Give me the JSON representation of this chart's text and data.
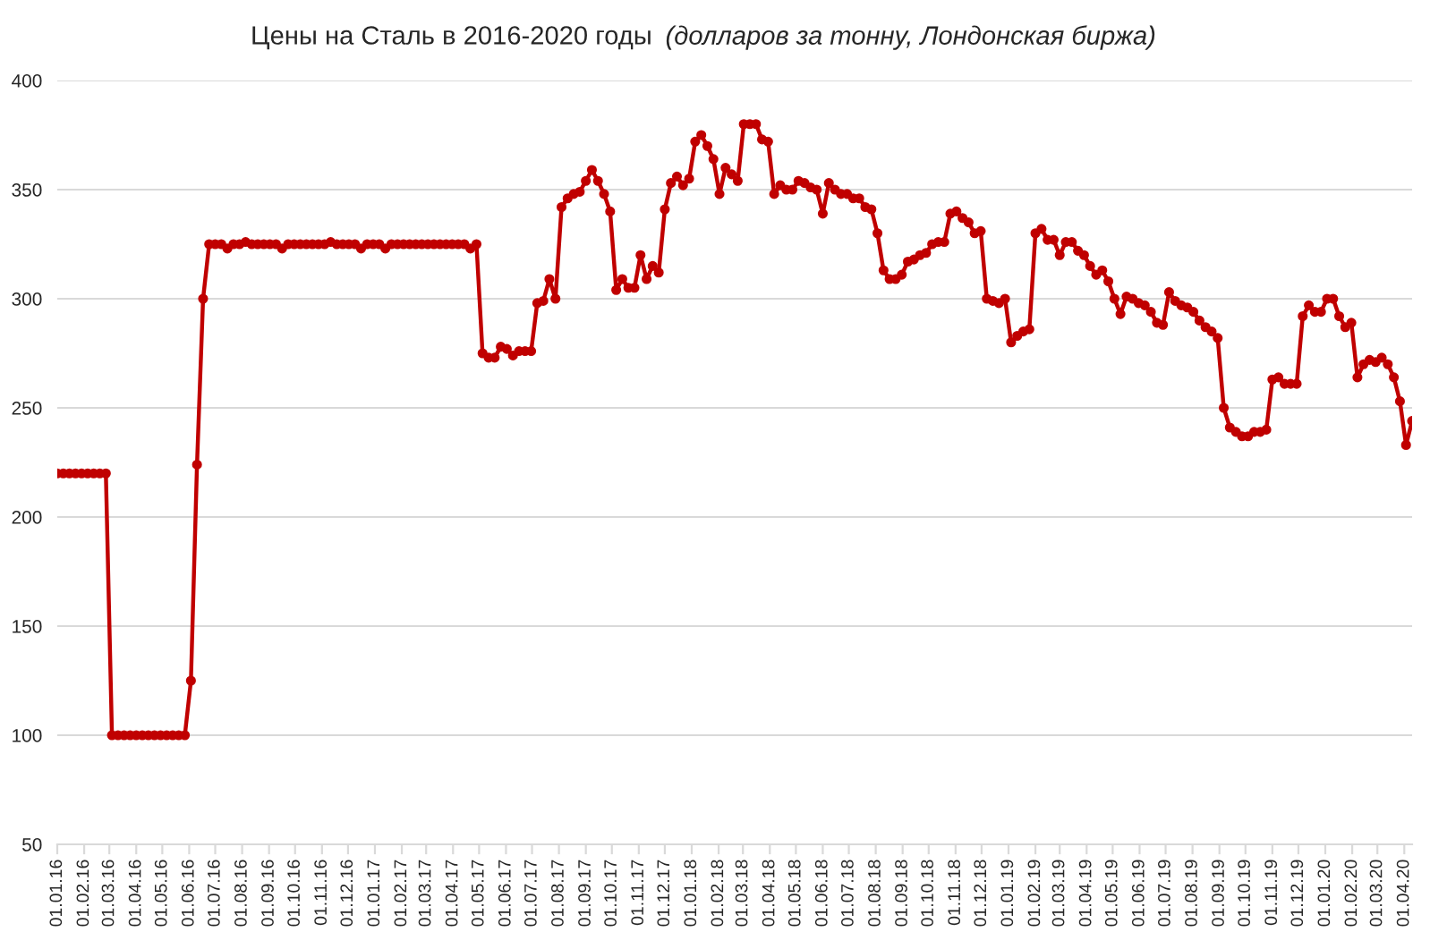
{
  "chart_data": {
    "type": "line",
    "title": "Цены на Сталь в 2016-2020 годы",
    "subtitle": "(долларов за тонну, Лондонская биржа)",
    "color": "#c00000",
    "marker": "circle",
    "line_style": "solid",
    "grid": "y",
    "xlim": [
      "2016-01-01",
      "2020-04-10"
    ],
    "ylim": [
      50,
      400
    ],
    "yticks": [
      50,
      100,
      150,
      200,
      250,
      300,
      350,
      400
    ],
    "xticks": [
      {
        "value": "2016-01-01",
        "label": "01.01.16"
      },
      {
        "value": "2016-02-01",
        "label": "01.02.16"
      },
      {
        "value": "2016-03-01",
        "label": "01.03.16"
      },
      {
        "value": "2016-04-01",
        "label": "01.04.16"
      },
      {
        "value": "2016-05-01",
        "label": "01.05.16"
      },
      {
        "value": "2016-06-01",
        "label": "01.06.16"
      },
      {
        "value": "2016-07-01",
        "label": "01.07.16"
      },
      {
        "value": "2016-08-01",
        "label": "01.08.16"
      },
      {
        "value": "2016-09-01",
        "label": "01.09.16"
      },
      {
        "value": "2016-10-01",
        "label": "01.10.16"
      },
      {
        "value": "2016-11-01",
        "label": "01.11.16"
      },
      {
        "value": "2016-12-01",
        "label": "01.12.16"
      },
      {
        "value": "2017-01-01",
        "label": "01.01.17"
      },
      {
        "value": "2017-02-01",
        "label": "01.02.17"
      },
      {
        "value": "2017-03-01",
        "label": "01.03.17"
      },
      {
        "value": "2017-04-01",
        "label": "01.04.17"
      },
      {
        "value": "2017-05-01",
        "label": "01.05.17"
      },
      {
        "value": "2017-06-01",
        "label": "01.06.17"
      },
      {
        "value": "2017-07-01",
        "label": "01.07.17"
      },
      {
        "value": "2017-08-01",
        "label": "01.08.17"
      },
      {
        "value": "2017-09-01",
        "label": "01.09.17"
      },
      {
        "value": "2017-10-01",
        "label": "01.10.17"
      },
      {
        "value": "2017-11-01",
        "label": "01.11.17"
      },
      {
        "value": "2017-12-01",
        "label": "01.12.17"
      },
      {
        "value": "2018-01-01",
        "label": "01.01.18"
      },
      {
        "value": "2018-02-01",
        "label": "01.02.18"
      },
      {
        "value": "2018-03-01",
        "label": "01.03.18"
      },
      {
        "value": "2018-04-01",
        "label": "01.04.18"
      },
      {
        "value": "2018-05-01",
        "label": "01.05.18"
      },
      {
        "value": "2018-06-01",
        "label": "01.06.18"
      },
      {
        "value": "2018-07-01",
        "label": "01.07.18"
      },
      {
        "value": "2018-08-01",
        "label": "01.08.18"
      },
      {
        "value": "2018-09-01",
        "label": "01.09.18"
      },
      {
        "value": "2018-10-01",
        "label": "01.10.18"
      },
      {
        "value": "2018-11-01",
        "label": "01.11.18"
      },
      {
        "value": "2018-12-01",
        "label": "01.12.18"
      },
      {
        "value": "2019-01-01",
        "label": "01.01.19"
      },
      {
        "value": "2019-02-01",
        "label": "01.02.19"
      },
      {
        "value": "2019-03-01",
        "label": "01.03.19"
      },
      {
        "value": "2019-04-01",
        "label": "01.04.19"
      },
      {
        "value": "2019-05-01",
        "label": "01.05.19"
      },
      {
        "value": "2019-06-01",
        "label": "01.06.19"
      },
      {
        "value": "2019-07-01",
        "label": "01.07.19"
      },
      {
        "value": "2019-08-01",
        "label": "01.08.19"
      },
      {
        "value": "2019-09-01",
        "label": "01.09.19"
      },
      {
        "value": "2019-10-01",
        "label": "01.10.19"
      },
      {
        "value": "2019-11-01",
        "label": "01.11.19"
      },
      {
        "value": "2019-12-01",
        "label": "01.12.19"
      },
      {
        "value": "2020-01-01",
        "label": "01.01.20"
      },
      {
        "value": "2020-02-01",
        "label": "01.02.20"
      },
      {
        "value": "2020-03-01",
        "label": "01.03.20"
      },
      {
        "value": "2020-04-01",
        "label": "01.04.20"
      }
    ],
    "x": [
      "2016-01-01",
      "2016-01-08",
      "2016-01-15",
      "2016-01-22",
      "2016-01-29",
      "2016-02-05",
      "2016-02-12",
      "2016-02-19",
      "2016-02-26",
      "2016-03-04",
      "2016-03-11",
      "2016-03-18",
      "2016-03-25",
      "2016-04-01",
      "2016-04-08",
      "2016-04-15",
      "2016-04-22",
      "2016-04-29",
      "2016-05-06",
      "2016-05-13",
      "2016-05-20",
      "2016-05-27",
      "2016-06-03",
      "2016-06-10",
      "2016-06-17",
      "2016-06-24",
      "2016-07-01",
      "2016-07-08",
      "2016-07-15",
      "2016-07-22",
      "2016-07-29",
      "2016-08-05",
      "2016-08-12",
      "2016-08-19",
      "2016-08-26",
      "2016-09-02",
      "2016-09-09",
      "2016-09-16",
      "2016-09-23",
      "2016-09-30",
      "2016-10-07",
      "2016-10-14",
      "2016-10-21",
      "2016-10-28",
      "2016-11-04",
      "2016-11-11",
      "2016-11-18",
      "2016-11-25",
      "2016-12-02",
      "2016-12-09",
      "2016-12-16",
      "2016-12-23",
      "2016-12-30",
      "2017-01-06",
      "2017-01-13",
      "2017-01-20",
      "2017-01-27",
      "2017-02-03",
      "2017-02-10",
      "2017-02-17",
      "2017-02-24",
      "2017-03-03",
      "2017-03-10",
      "2017-03-17",
      "2017-03-24",
      "2017-03-31",
      "2017-04-07",
      "2017-04-14",
      "2017-04-21",
      "2017-04-28",
      "2017-05-05",
      "2017-05-12",
      "2017-05-19",
      "2017-05-26",
      "2017-06-02",
      "2017-06-09",
      "2017-06-16",
      "2017-06-23",
      "2017-06-30",
      "2017-07-07",
      "2017-07-14",
      "2017-07-21",
      "2017-07-28",
      "2017-08-04",
      "2017-08-11",
      "2017-08-18",
      "2017-08-25",
      "2017-09-01",
      "2017-09-08",
      "2017-09-15",
      "2017-09-22",
      "2017-09-29",
      "2017-10-06",
      "2017-10-13",
      "2017-10-20",
      "2017-10-27",
      "2017-11-03",
      "2017-11-10",
      "2017-11-17",
      "2017-11-24",
      "2017-12-01",
      "2017-12-08",
      "2017-12-15",
      "2017-12-22",
      "2017-12-29",
      "2018-01-05",
      "2018-01-12",
      "2018-01-19",
      "2018-01-26",
      "2018-02-02",
      "2018-02-09",
      "2018-02-16",
      "2018-02-23",
      "2018-03-02",
      "2018-03-09",
      "2018-03-16",
      "2018-03-23",
      "2018-03-30",
      "2018-04-06",
      "2018-04-13",
      "2018-04-20",
      "2018-04-27",
      "2018-05-04",
      "2018-05-11",
      "2018-05-18",
      "2018-05-25",
      "2018-06-01",
      "2018-06-08",
      "2018-06-15",
      "2018-06-22",
      "2018-06-29",
      "2018-07-06",
      "2018-07-13",
      "2018-07-20",
      "2018-07-27",
      "2018-08-03",
      "2018-08-10",
      "2018-08-17",
      "2018-08-24",
      "2018-08-31",
      "2018-09-07",
      "2018-09-14",
      "2018-09-21",
      "2018-09-28",
      "2018-10-05",
      "2018-10-12",
      "2018-10-19",
      "2018-10-26",
      "2018-11-02",
      "2018-11-09",
      "2018-11-16",
      "2018-11-23",
      "2018-11-30",
      "2018-12-07",
      "2018-12-14",
      "2018-12-21",
      "2018-12-28",
      "2019-01-04",
      "2019-01-11",
      "2019-01-18",
      "2019-01-25",
      "2019-02-01",
      "2019-02-08",
      "2019-02-15",
      "2019-02-22",
      "2019-03-01",
      "2019-03-08",
      "2019-03-15",
      "2019-03-22",
      "2019-03-29",
      "2019-04-05",
      "2019-04-12",
      "2019-04-19",
      "2019-04-26",
      "2019-05-03",
      "2019-05-10",
      "2019-05-17",
      "2019-05-24",
      "2019-05-31",
      "2019-06-07",
      "2019-06-14",
      "2019-06-21",
      "2019-06-28",
      "2019-07-05",
      "2019-07-12",
      "2019-07-19",
      "2019-07-26",
      "2019-08-02",
      "2019-08-09",
      "2019-08-16",
      "2019-08-23",
      "2019-08-30",
      "2019-09-06",
      "2019-09-13",
      "2019-09-20",
      "2019-09-27",
      "2019-10-04",
      "2019-10-11",
      "2019-10-18",
      "2019-10-25",
      "2019-11-01",
      "2019-11-08",
      "2019-11-15",
      "2019-11-22",
      "2019-11-29",
      "2019-12-06",
      "2019-12-13",
      "2019-12-20",
      "2019-12-27",
      "2020-01-03",
      "2020-01-10",
      "2020-01-17",
      "2020-01-24",
      "2020-01-31",
      "2020-02-07",
      "2020-02-14",
      "2020-02-21",
      "2020-02-28",
      "2020-03-06",
      "2020-03-13",
      "2020-03-20",
      "2020-03-27",
      "2020-04-03",
      "2020-04-10"
    ],
    "values": [
      220,
      220,
      220,
      220,
      220,
      220,
      220,
      220,
      220,
      100,
      100,
      100,
      100,
      100,
      100,
      100,
      100,
      100,
      100,
      100,
      100,
      100,
      125,
      224,
      300,
      325,
      325,
      325,
      323,
      325,
      325,
      326,
      325,
      325,
      325,
      325,
      325,
      323,
      325,
      325,
      325,
      325,
      325,
      325,
      325,
      326,
      325,
      325,
      325,
      325,
      323,
      325,
      325,
      325,
      323,
      325,
      325,
      325,
      325,
      325,
      325,
      325,
      325,
      325,
      325,
      325,
      325,
      325,
      323,
      325,
      275,
      273,
      273,
      278,
      277,
      274,
      276,
      276,
      276,
      298,
      299,
      309,
      300,
      342,
      346,
      348,
      349,
      354,
      359,
      354,
      348,
      340,
      304,
      309,
      305,
      305,
      320,
      309,
      315,
      312,
      341,
      353,
      356,
      352,
      355,
      372,
      375,
      370,
      364,
      348,
      360,
      357,
      354,
      380,
      380,
      380,
      373,
      372,
      348,
      352,
      350,
      350,
      354,
      353,
      351,
      350,
      339,
      353,
      350,
      348,
      348,
      346,
      346,
      342,
      341,
      330,
      313,
      309,
      309,
      311,
      317,
      318,
      320,
      321,
      325,
      326,
      326,
      339,
      340,
      337,
      335,
      330,
      331,
      300,
      299,
      298,
      300,
      280,
      283,
      285,
      286,
      330,
      332,
      327,
      327,
      320,
      326,
      326,
      322,
      320,
      315,
      311,
      313,
      308,
      300,
      293,
      301,
      300,
      298,
      297,
      294,
      289,
      288,
      303,
      299,
      297,
      296,
      294,
      290,
      287,
      285,
      282,
      250,
      241,
      239,
      237,
      237,
      239,
      239,
      240,
      263,
      264,
      261,
      261,
      261,
      292,
      297,
      294,
      294,
      300,
      300,
      292,
      287,
      289,
      264,
      270,
      272,
      271,
      273,
      270,
      264,
      253,
      233,
      244
    ]
  }
}
